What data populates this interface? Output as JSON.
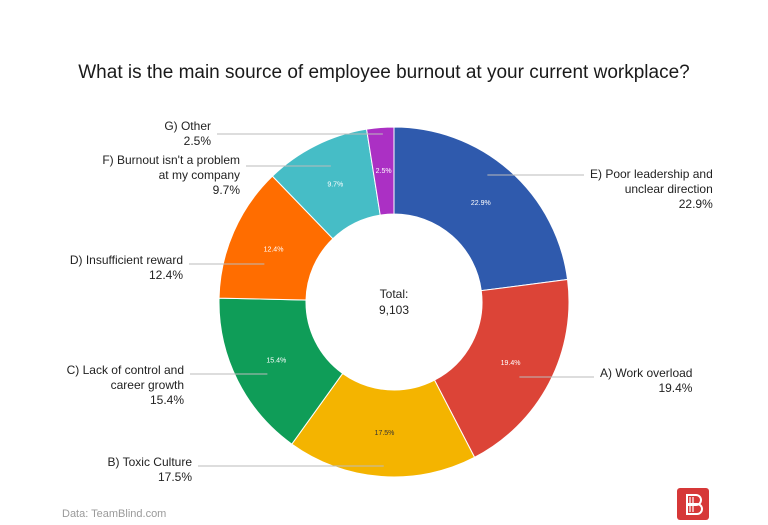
{
  "chart_data": {
    "type": "donut",
    "title": "What is the main source of employee burnout at your current workplace?",
    "center_label": "Total:",
    "center_value": "9,103",
    "slices": [
      {
        "name": "E) Poor leadership and unclear direction",
        "lines": [
          "E) Poor leadership and",
          "unclear direction"
        ],
        "value": 22.9,
        "label": "22.9%",
        "color": "#2f5aad"
      },
      {
        "name": "A) Work overload",
        "lines": [
          "A) Work overload"
        ],
        "value": 19.4,
        "label": "19.4%",
        "color": "#dc4437"
      },
      {
        "name": "B) Toxic Culture",
        "lines": [
          "B) Toxic Culture"
        ],
        "value": 17.5,
        "label": "17.5%",
        "color": "#f4b400"
      },
      {
        "name": "C) Lack of control and career growth",
        "lines": [
          "C) Lack of control and",
          "career growth"
        ],
        "value": 15.4,
        "label": "15.4%",
        "color": "#0f9d58"
      },
      {
        "name": "D) Insufficient reward",
        "lines": [
          "D) Insufficient reward"
        ],
        "value": 12.4,
        "label": "12.4%",
        "color": "#ff6d00"
      },
      {
        "name": "F) Burnout isn't a problem at my company",
        "lines": [
          "F) Burnout isn't a problem",
          "at my company"
        ],
        "value": 9.7,
        "label": "9.7%",
        "color": "#46bdc6"
      },
      {
        "name": "G) Other",
        "lines": [
          "G) Other"
        ],
        "value": 2.5,
        "label": "2.5%",
        "color": "#ab30c4"
      }
    ]
  },
  "footer": {
    "source": "Data: TeamBlind.com",
    "logo_icon": "teamblind-logo-icon"
  }
}
